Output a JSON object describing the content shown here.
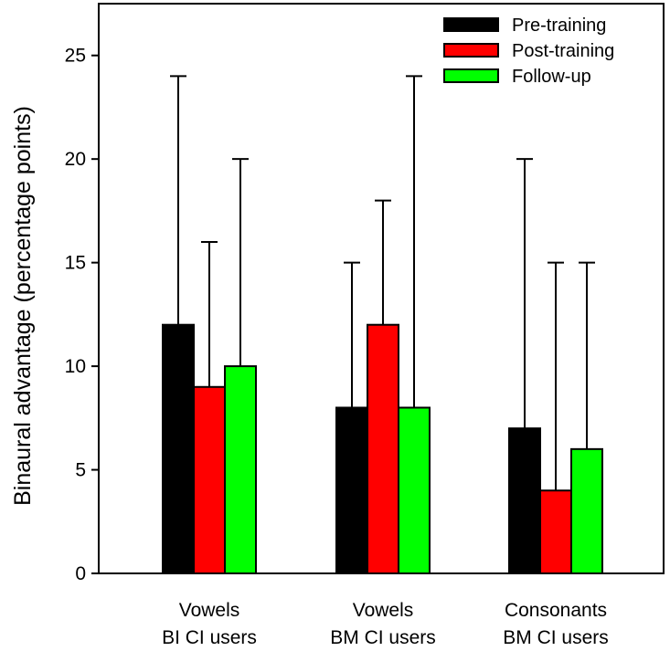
{
  "chart_data": {
    "type": "bar",
    "title": "",
    "xlabel": "",
    "ylabel": "Binaural advantage (percentage points)",
    "ylim": [
      0,
      27.5
    ],
    "yticks": [
      0,
      5,
      10,
      15,
      20,
      25
    ],
    "grid": false,
    "legend_position": "top-right",
    "categories": [
      [
        "Vowels",
        "BI CI users"
      ],
      [
        "Vowels",
        "BM CI users"
      ],
      [
        "Consonants",
        "BM CI users"
      ]
    ],
    "series": [
      {
        "name": "Pre-training",
        "color": "#000000",
        "values": [
          12,
          8,
          7
        ],
        "error_upper": [
          24,
          15,
          20
        ]
      },
      {
        "name": "Post-training",
        "color": "#ff0000",
        "values": [
          9,
          12,
          4
        ],
        "error_upper": [
          16,
          18,
          15
        ]
      },
      {
        "name": "Follow-up",
        "color": "#00ff00",
        "values": [
          10,
          8,
          6
        ],
        "error_upper": [
          20,
          24,
          15
        ]
      }
    ]
  }
}
